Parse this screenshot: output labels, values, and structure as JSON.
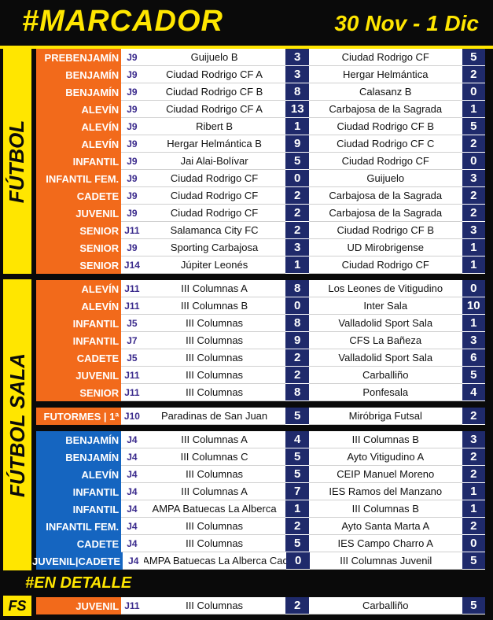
{
  "header": {
    "title": "#MARCADOR",
    "date": "30 Nov - 1 Dic"
  },
  "sections": {
    "futbol": "FÚTBOL",
    "futbol_sala": "FÚTBOL SALA",
    "detalle": "#EN DETALLE",
    "fs": "FS"
  },
  "futbol_rows": [
    {
      "cat": "PREBENJAMÍN",
      "jor": "J9",
      "home": "Guijuelo B",
      "hs": "3",
      "away": "Ciudad Rodrigo CF",
      "as": "5"
    },
    {
      "cat": "BENJAMÍN",
      "jor": "J9",
      "home": "Ciudad Rodrigo CF A",
      "hs": "3",
      "away": "Hergar Helmántica",
      "as": "2"
    },
    {
      "cat": "BENJAMÍN",
      "jor": "J9",
      "home": "Ciudad Rodrigo CF B",
      "hs": "8",
      "away": "Calasanz B",
      "as": "0"
    },
    {
      "cat": "ALEVÍN",
      "jor": "J9",
      "home": "Ciudad Rodrigo CF A",
      "hs": "13",
      "away": "Carbajosa de la Sagrada",
      "as": "1"
    },
    {
      "cat": "ALEVÍN",
      "jor": "J9",
      "home": "Ribert B",
      "hs": "1",
      "away": "Ciudad Rodrigo CF B",
      "as": "5"
    },
    {
      "cat": "ALEVÍN",
      "jor": "J9",
      "home": "Hergar Helmántica B",
      "hs": "9",
      "away": "Ciudad Rodrigo CF C",
      "as": "2"
    },
    {
      "cat": "INFANTIL",
      "jor": "J9",
      "home": "Jai Alai-Bolívar",
      "hs": "5",
      "away": "Ciudad Rodrigo CF",
      "as": "0"
    },
    {
      "cat": "INFANTIL FEM.",
      "jor": "J9",
      "home": "Ciudad Rodrigo CF",
      "hs": "0",
      "away": "Guijuelo",
      "as": "3"
    },
    {
      "cat": "CADETE",
      "jor": "J9",
      "home": "Ciudad Rodrigo CF",
      "hs": "2",
      "away": "Carbajosa de la Sagrada",
      "as": "2"
    },
    {
      "cat": "JUVENIL",
      "jor": "J9",
      "home": "Ciudad Rodrigo CF",
      "hs": "2",
      "away": "Carbajosa de la Sagrada",
      "as": "2"
    },
    {
      "cat": "SENIOR",
      "jor": "J11",
      "home": "Salamanca City FC",
      "hs": "2",
      "away": "Ciudad Rodrigo CF B",
      "as": "3"
    },
    {
      "cat": "SENIOR",
      "jor": "J9",
      "home": "Sporting Carbajosa",
      "hs": "3",
      "away": "UD Mirobrigense",
      "as": "1"
    },
    {
      "cat": "SENIOR",
      "jor": "J14",
      "home": "Júpiter Leonés",
      "hs": "1",
      "away": "Ciudad Rodrigo CF",
      "as": "1"
    }
  ],
  "sala_orange_rows": [
    {
      "cat": "ALEVÍN",
      "jor": "J11",
      "home": "III Columnas A",
      "hs": "8",
      "away": "Los Leones de Vitigudino",
      "as": "0"
    },
    {
      "cat": "ALEVÍN",
      "jor": "J11",
      "home": "III Columnas B",
      "hs": "0",
      "away": "Inter Sala",
      "as": "10"
    },
    {
      "cat": "INFANTIL",
      "jor": "J5",
      "home": "III Columnas",
      "hs": "8",
      "away": "Valladolid Sport Sala",
      "as": "1"
    },
    {
      "cat": "INFANTIL",
      "jor": "J7",
      "home": "III Columnas",
      "hs": "9",
      "away": "CFS La Bañeza",
      "as": "3"
    },
    {
      "cat": "CADETE",
      "jor": "J5",
      "home": "III Columnas",
      "hs": "2",
      "away": "Valladolid Sport Sala",
      "as": "6"
    },
    {
      "cat": "JUVENIL",
      "jor": "J11",
      "home": "III Columnas",
      "hs": "2",
      "away": "Carballiño",
      "as": "5"
    },
    {
      "cat": "SENIOR",
      "jor": "J11",
      "home": "III Columnas",
      "hs": "8",
      "away": "Ponfesala",
      "as": "4"
    }
  ],
  "futormes_row": {
    "cat": "FUTORMES | 1ª",
    "jor": "J10",
    "home": "Paradinas de San Juan",
    "hs": "5",
    "away": "Miróbriga Futsal",
    "as": "2"
  },
  "sala_blue_rows": [
    {
      "cat": "BENJAMÍN",
      "jor": "J4",
      "home": "III Columnas A",
      "hs": "4",
      "away": "III Columnas B",
      "as": "3"
    },
    {
      "cat": "BENJAMÍN",
      "jor": "J4",
      "home": "III Columnas C",
      "hs": "5",
      "away": "Ayto Vitigudino A",
      "as": "2"
    },
    {
      "cat": "ALEVÍN",
      "jor": "J4",
      "home": "III Columnas",
      "hs": "5",
      "away": "CEIP Manuel Moreno",
      "as": "2"
    },
    {
      "cat": "INFANTIL",
      "jor": "J4",
      "home": "III Columnas A",
      "hs": "7",
      "away": "IES Ramos del Manzano",
      "as": "1"
    },
    {
      "cat": "INFANTIL",
      "jor": "J4",
      "home": "AMPA Batuecas La Alberca",
      "hs": "1",
      "away": "III Columnas B",
      "as": "1"
    },
    {
      "cat": "INFANTIL FEM.",
      "jor": "J4",
      "home": "III Columnas",
      "hs": "2",
      "away": "Ayto Santa Marta A",
      "as": "2"
    },
    {
      "cat": "CADETE",
      "jor": "J4",
      "home": "III Columnas",
      "hs": "5",
      "away": "IES Campo Charro A",
      "as": "0"
    },
    {
      "cat": "JUVENIL|CADETE",
      "jor": "J4",
      "home": "AMPA Batuecas La Alberca Cad",
      "hs": "0",
      "away": "III Columnas Juvenil",
      "as": "5"
    }
  ],
  "detalle_row": {
    "cat": "JUVENIL",
    "jor": "J11",
    "home": "III Columnas",
    "hs": "2",
    "away": "Carballiño",
    "as": "5"
  }
}
